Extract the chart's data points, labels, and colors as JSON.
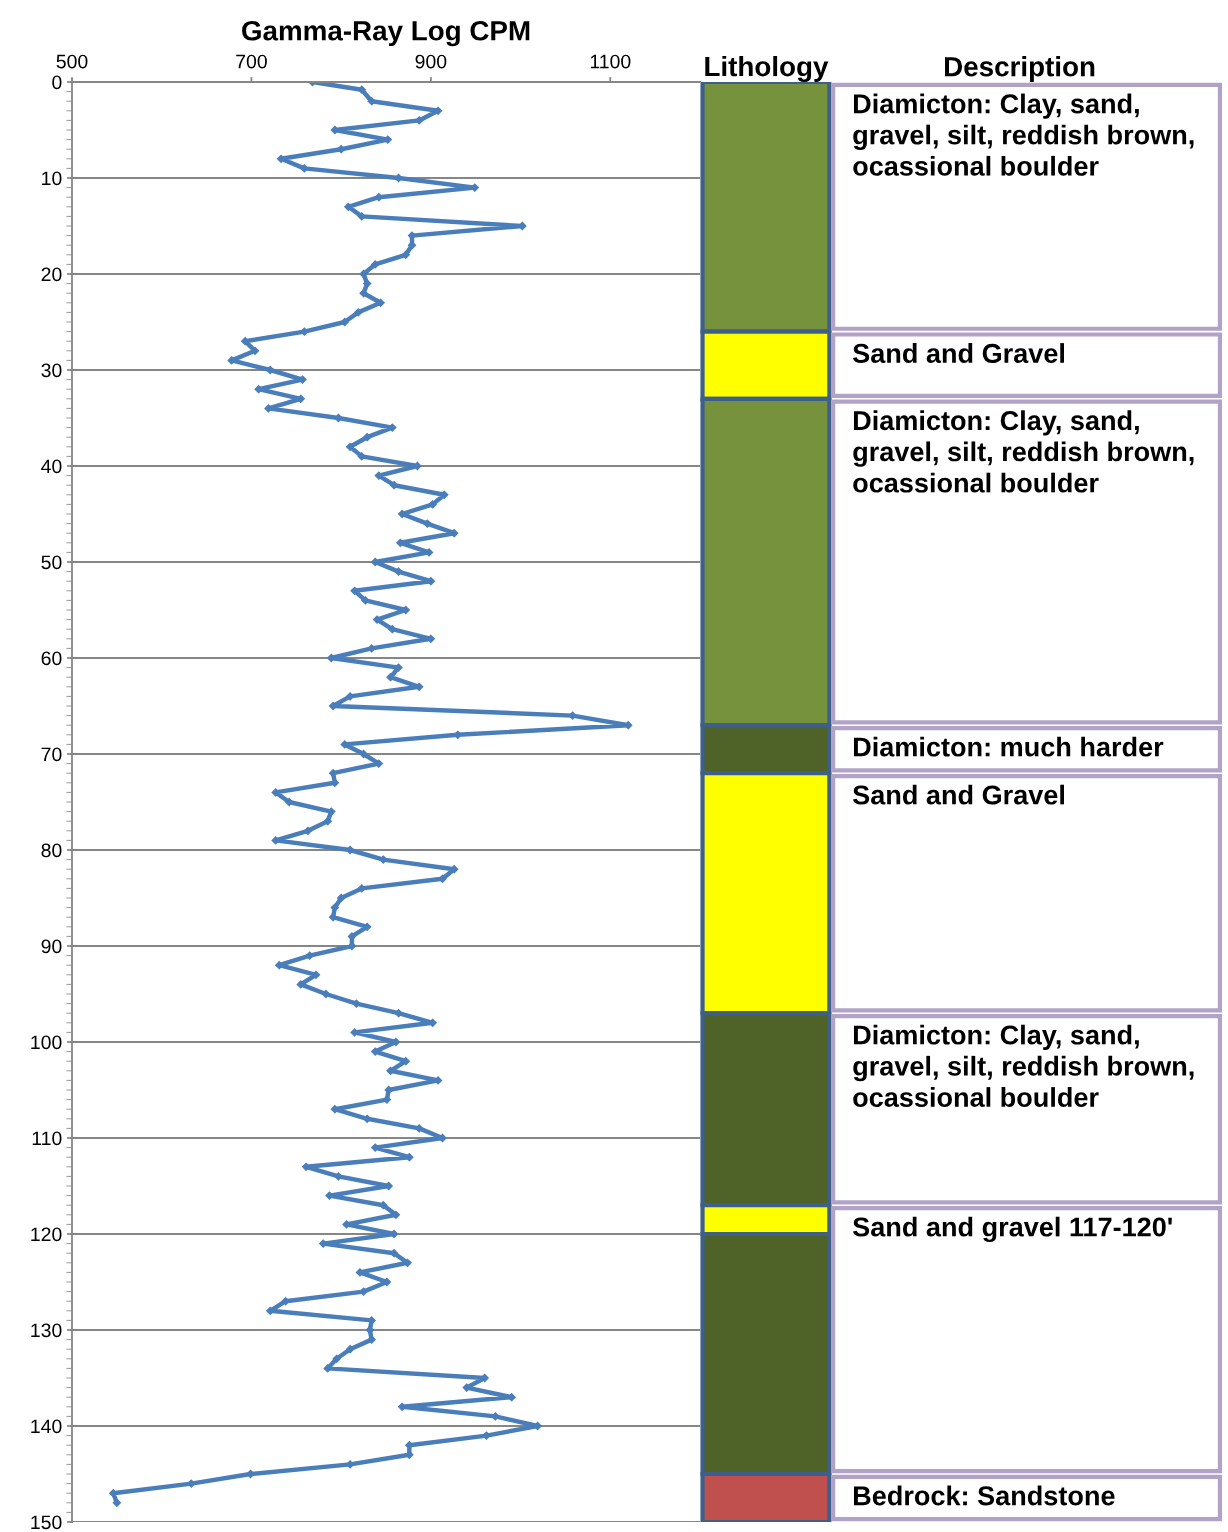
{
  "chart_data": [
    {
      "type": "line",
      "title": "Gamma-Ray Log CPM",
      "xlim": [
        500,
        1200
      ],
      "xticks": [
        500,
        700,
        900,
        1100
      ],
      "ylim": [
        150,
        0
      ],
      "yticks": [
        0,
        10,
        20,
        30,
        40,
        50,
        60,
        70,
        80,
        90,
        100,
        110,
        120,
        130,
        140,
        150
      ],
      "grid": "y",
      "legend": false,
      "marker": "diamond",
      "line_style": "solid",
      "series": [
        {
          "color": "#4a7ebb",
          "x": [
            768,
            823,
            834,
            908,
            887,
            793,
            852,
            800,
            733,
            759,
            864,
            949,
            842,
            808,
            823,
            1002,
            879,
            879,
            872,
            838,
            825,
            829,
            825,
            844,
            819,
            804,
            759,
            693,
            704,
            678,
            721,
            757,
            708,
            755,
            719,
            797,
            857,
            829,
            810,
            823,
            885,
            842,
            859,
            915,
            902,
            868,
            896,
            926,
            866,
            898,
            838,
            864,
            900,
            815,
            827,
            872,
            840,
            857,
            900,
            834,
            789,
            864,
            855,
            887,
            810,
            791,
            1058,
            1120,
            930,
            804,
            825,
            842,
            791,
            793,
            727,
            742,
            789,
            785,
            763,
            727,
            810,
            847,
            926,
            913,
            823,
            800,
            793,
            791,
            829,
            812,
            812,
            765,
            731,
            772,
            755,
            783,
            817,
            864,
            902,
            815,
            861,
            838,
            872,
            855,
            908,
            853,
            851,
            793,
            829,
            887,
            913,
            838,
            876,
            761,
            797,
            853,
            787,
            847,
            861,
            806,
            859,
            780,
            859,
            874,
            821,
            851,
            825,
            738,
            721,
            834,
            832,
            834,
            810,
            795,
            785,
            960,
            940,
            990,
            868,
            972,
            1019,
            962,
            876,
            876,
            810,
            699,
            633,
            546,
            550
          ],
          "values": [
            0,
            0.8,
            2,
            3,
            4,
            5,
            6,
            7,
            8,
            9,
            10,
            11,
            12,
            13,
            14,
            15,
            16,
            17,
            18,
            19,
            20,
            21,
            22,
            23,
            24,
            25,
            26,
            27,
            28,
            29,
            30,
            31,
            32,
            33,
            34,
            35,
            36,
            37,
            38,
            39,
            40,
            41,
            42,
            43,
            44,
            45,
            46,
            47,
            48,
            49,
            50,
            51,
            52,
            53,
            54,
            55,
            56,
            57,
            58,
            59,
            60,
            61,
            62,
            63,
            64,
            65,
            66,
            67,
            68,
            69,
            70,
            71,
            72,
            73,
            74,
            75,
            76,
            77,
            78,
            79,
            80,
            81,
            82,
            83,
            84,
            85,
            86,
            87,
            88,
            89,
            90,
            91,
            92,
            93,
            94,
            95,
            96,
            97,
            98,
            99,
            100,
            101,
            102,
            103,
            104,
            105,
            106,
            107,
            108,
            109,
            110,
            111,
            112,
            113,
            114,
            115,
            116,
            117,
            118,
            119,
            120,
            121,
            122,
            123,
            124,
            125,
            126,
            127,
            128,
            129,
            130,
            131,
            132,
            133,
            134,
            135,
            136,
            137,
            138,
            139,
            140,
            141,
            142,
            143,
            144,
            145,
            146,
            147,
            148
          ]
        }
      ]
    },
    {
      "type": "bar",
      "title": "Lithology",
      "stacked": true,
      "categories": [
        null
      ],
      "ylim": [
        150,
        0
      ],
      "series": [
        {
          "color": "#76923c",
          "values": [
            26
          ]
        },
        {
          "color": "#ffff00",
          "values": [
            7
          ]
        },
        {
          "color": "#76923c",
          "values": [
            34
          ]
        },
        {
          "color": "#4f6228",
          "values": [
            5
          ]
        },
        {
          "color": "#ffff00",
          "values": [
            25
          ]
        },
        {
          "color": "#4f6228",
          "values": [
            20
          ]
        },
        {
          "color": "#ffff00",
          "values": [
            3
          ]
        },
        {
          "color": "#4f6228",
          "values": [
            25
          ]
        },
        {
          "color": "#c0504d",
          "values": [
            5
          ]
        }
      ],
      "annotations": [
        "Description",
        "Diamicton: Clay, sand, gravel, silt, reddish brown, ocassional boulder",
        "Sand and Gravel",
        "Diamicton: Clay, sand, gravel, silt, reddish brown, ocassional boulder",
        "Diamicton: much harder",
        "Sand and Gravel",
        "Diamicton: Clay, sand, gravel, silt, reddish brown, ocassional boulder",
        "Sand and gravel 117-120'",
        "Bedrock: Sandstone"
      ]
    }
  ]
}
